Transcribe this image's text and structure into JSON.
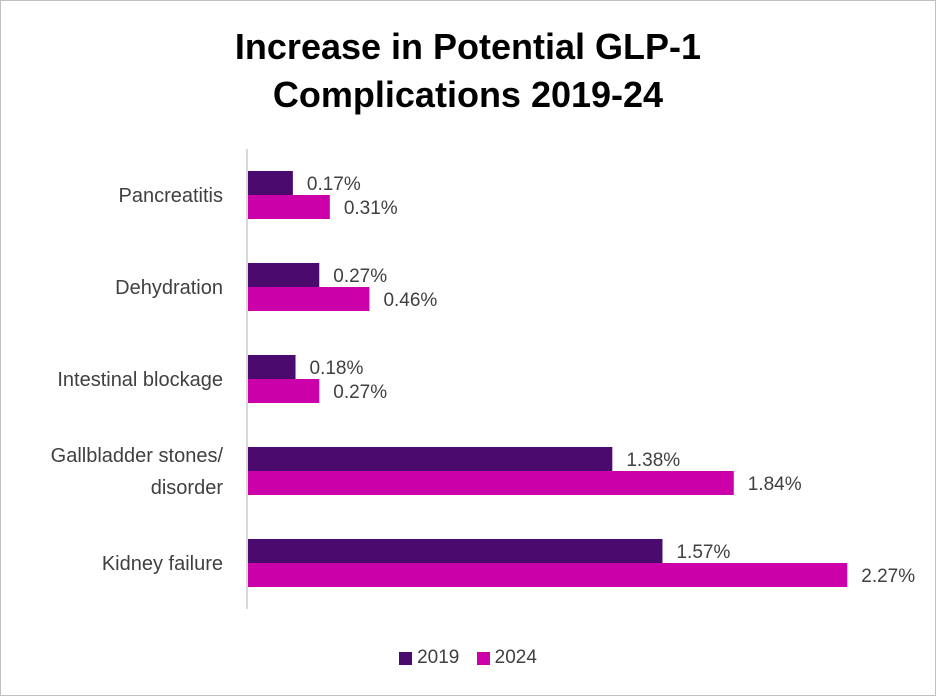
{
  "chart_data": {
    "type": "bar",
    "orientation": "horizontal",
    "title_lines": [
      "Increase in Potential GLP-1",
      "Complications 2019-24"
    ],
    "categories": [
      [
        "Pancreatitis"
      ],
      [
        "Dehydration"
      ],
      [
        "Intestinal blockage"
      ],
      [
        "Gallbladder stones/",
        "disorder"
      ],
      [
        "Kidney failure"
      ]
    ],
    "series": [
      {
        "name": "2019",
        "color": "#4A0A6E",
        "values": [
          0.17,
          0.27,
          0.18,
          1.38,
          1.57
        ],
        "labels": [
          "0.17%",
          "0.27%",
          "0.18%",
          "1.38%",
          "1.57%"
        ]
      },
      {
        "name": "2024",
        "color": "#CC00A8",
        "values": [
          0.31,
          0.46,
          0.27,
          1.84,
          2.27
        ],
        "labels": [
          "0.31%",
          "0.46%",
          "0.27%",
          "1.84%",
          "2.27%"
        ]
      }
    ],
    "unit": "%",
    "xlim": [
      0,
      2.3
    ],
    "grid": false,
    "legend_position": "bottom"
  }
}
